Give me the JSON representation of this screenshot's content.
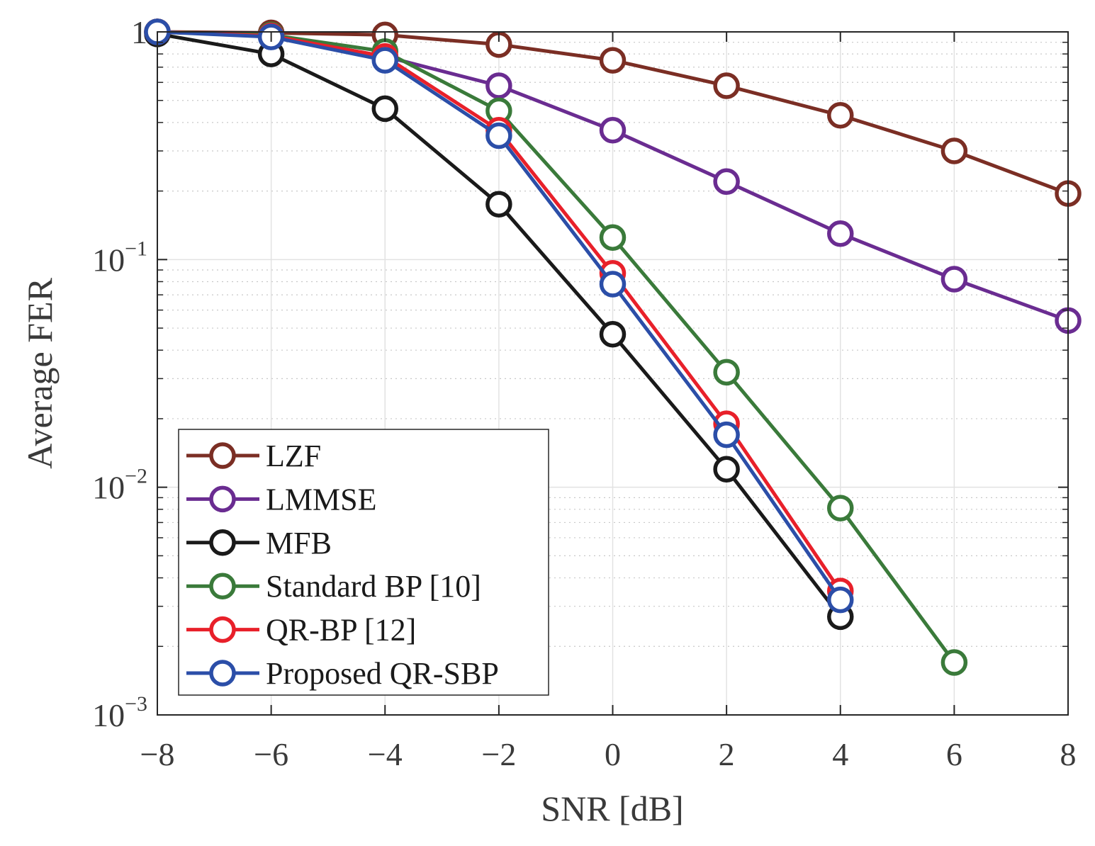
{
  "chart_data": {
    "type": "line",
    "xlabel": "SNR [dB]",
    "ylabel": "Average FER",
    "xlim": [
      -8,
      8
    ],
    "ylim": [
      0.001,
      1
    ],
    "yscale": "log",
    "grid": true,
    "minor_grid": true,
    "legend_position": "bottom-left",
    "x_ticks": [
      {
        "value": -8,
        "label": "−8"
      },
      {
        "value": -6,
        "label": "−6"
      },
      {
        "value": -4,
        "label": "−4"
      },
      {
        "value": -2,
        "label": "−2"
      },
      {
        "value": 0,
        "label": "0"
      },
      {
        "value": 2,
        "label": "2"
      },
      {
        "value": 4,
        "label": "4"
      },
      {
        "value": 6,
        "label": "6"
      },
      {
        "value": 8,
        "label": "8"
      }
    ],
    "y_ticks": [
      {
        "value": 1,
        "base": "1",
        "exp": ""
      },
      {
        "value": 0.1,
        "base": "10",
        "exp": "−1"
      },
      {
        "value": 0.01,
        "base": "10",
        "exp": "−2"
      },
      {
        "value": 0.001,
        "base": "10",
        "exp": "−3"
      }
    ],
    "series": [
      {
        "name": "LZF",
        "color": "#7b2e24",
        "x": [
          -8,
          -6,
          -4,
          -2,
          0,
          2,
          4,
          6,
          8
        ],
        "y": [
          1.0,
          0.99,
          0.97,
          0.88,
          0.75,
          0.58,
          0.43,
          0.3,
          0.195
        ]
      },
      {
        "name": "LMMSE",
        "color": "#6a2c91",
        "x": [
          -8,
          -6,
          -4,
          -2,
          0,
          2,
          4,
          6,
          8
        ],
        "y": [
          1.0,
          0.96,
          0.78,
          0.58,
          0.37,
          0.22,
          0.13,
          0.082,
          0.054
        ]
      },
      {
        "name": "MFB",
        "color": "#1a1a1a",
        "x": [
          -8,
          -6,
          -4,
          -2,
          0,
          2,
          4
        ],
        "y": [
          0.98,
          0.8,
          0.46,
          0.175,
          0.047,
          0.012,
          0.0027
        ]
      },
      {
        "name": "Standard BP [10]",
        "color": "#3a7a3a",
        "x": [
          -8,
          -6,
          -4,
          -2,
          0,
          2,
          4,
          6
        ],
        "y": [
          1.0,
          0.97,
          0.82,
          0.45,
          0.125,
          0.032,
          0.0081,
          0.0017
        ]
      },
      {
        "name": "QR-BP [12]",
        "color": "#e8202a",
        "x": [
          -8,
          -6,
          -4,
          -2,
          0,
          2,
          4
        ],
        "y": [
          1.0,
          0.96,
          0.78,
          0.37,
          0.087,
          0.019,
          0.0035
        ]
      },
      {
        "name": "Proposed QR-SBP",
        "color": "#2b4ea8",
        "x": [
          -8,
          -6,
          -4,
          -2,
          0,
          2,
          4
        ],
        "y": [
          1.0,
          0.95,
          0.75,
          0.35,
          0.078,
          0.017,
          0.0032
        ]
      }
    ]
  }
}
